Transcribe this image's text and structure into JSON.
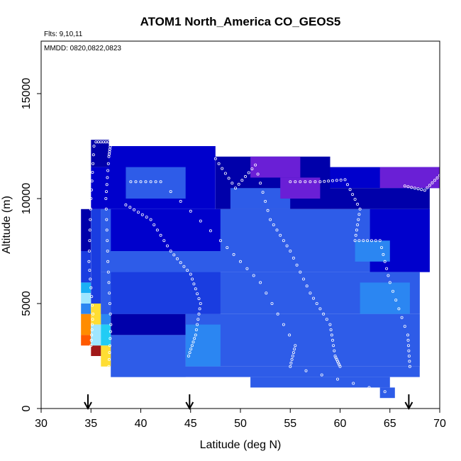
{
  "chart_data": {
    "type": "heatmap",
    "title": "ATOM1 North_America CO_GEOS5",
    "annotations": {
      "flights": "Flts: 9,10,11",
      "dates": "MMDD: 0820,0822,0823"
    },
    "xlabel": "Latitude (deg N)",
    "ylabel": "Altitude (m)",
    "xlim": [
      30,
      70
    ],
    "ylim": [
      0,
      17500
    ],
    "xticks": [
      "30",
      "35",
      "40",
      "45",
      "50",
      "55",
      "60",
      "65",
      "70"
    ],
    "yticks": [
      "0",
      "5000",
      "10000",
      "15000"
    ],
    "grid": false,
    "arrow_markers_lat": [
      34.7,
      44.9,
      66.9
    ],
    "colors": {
      "purple": "#6a1fd6",
      "navy": "#0000aa",
      "dark_blue": "#0000cc",
      "blue": "#1a3de0",
      "mid_blue": "#2e5ce8",
      "light_blue": "#2b86f2",
      "sky": "#1ab0f5",
      "cyan": "#22ccf5",
      "pale": "#9fe6ff",
      "yellow": "#ffdd33",
      "orange": "#ff8c00",
      "red_orange": "#ff5a00",
      "dark_red": "#a01818"
    },
    "regions": [
      {
        "lat": [
          34.0,
          35.0
        ],
        "alt": [
          7500,
          9500
        ],
        "color": "navy"
      },
      {
        "lat": [
          34.0,
          35.0
        ],
        "alt": [
          6000,
          7500
        ],
        "color": "blue"
      },
      {
        "lat": [
          34.0,
          35.0
        ],
        "alt": [
          5500,
          6000
        ],
        "color": "sky"
      },
      {
        "lat": [
          34.0,
          35.0
        ],
        "alt": [
          5000,
          5500
        ],
        "color": "pale"
      },
      {
        "lat": [
          34.0,
          35.0
        ],
        "alt": [
          4500,
          5000
        ],
        "color": "light_blue"
      },
      {
        "lat": [
          34.0,
          35.0
        ],
        "alt": [
          3500,
          4500
        ],
        "color": "orange"
      },
      {
        "lat": [
          34.0,
          35.0
        ],
        "alt": [
          3000,
          3500
        ],
        "color": "red_orange"
      },
      {
        "lat": [
          35.0,
          36.0
        ],
        "alt": [
          5000,
          9500
        ],
        "color": "blue"
      },
      {
        "lat": [
          35.0,
          36.0
        ],
        "alt": [
          4000,
          5000
        ],
        "color": "yellow"
      },
      {
        "lat": [
          35.0,
          36.0
        ],
        "alt": [
          3000,
          4000
        ],
        "color": "pale"
      },
      {
        "lat": [
          35.0,
          36.0
        ],
        "alt": [
          2500,
          3000
        ],
        "color": "dark_red"
      },
      {
        "lat": [
          36.0,
          37.0
        ],
        "alt": [
          4000,
          5000
        ],
        "color": "light_blue"
      },
      {
        "lat": [
          36.0,
          37.0
        ],
        "alt": [
          3000,
          4000
        ],
        "color": "cyan"
      },
      {
        "lat": [
          36.0,
          37.0
        ],
        "alt": [
          2000,
          3000
        ],
        "color": "yellow"
      },
      {
        "lat": [
          35.0,
          36.8
        ],
        "alt": [
          11500,
          12800
        ],
        "color": "navy"
      },
      {
        "lat": [
          35.0,
          36.8
        ],
        "alt": [
          9500,
          11500
        ],
        "color": "dark_blue"
      },
      {
        "lat": [
          36.8,
          47.5
        ],
        "alt": [
          9500,
          12500
        ],
        "color": "dark_blue"
      },
      {
        "lat": [
          38.5,
          44.5
        ],
        "alt": [
          10000,
          11500
        ],
        "color": "mid_blue"
      },
      {
        "lat": [
          47.5,
          59.0
        ],
        "alt": [
          9500,
          12000
        ],
        "color": "navy"
      },
      {
        "lat": [
          49.0,
          55.0
        ],
        "alt": [
          9500,
          10500
        ],
        "color": "mid_blue"
      },
      {
        "lat": [
          51.0,
          56.0
        ],
        "alt": [
          11000,
          12000
        ],
        "color": "purple"
      },
      {
        "lat": [
          54.0,
          58.0
        ],
        "alt": [
          10000,
          11000
        ],
        "color": "purple"
      },
      {
        "lat": [
          59.0,
          70.0
        ],
        "alt": [
          10500,
          11500
        ],
        "color": "dark_blue"
      },
      {
        "lat": [
          64.0,
          70.0
        ],
        "alt": [
          10500,
          11500
        ],
        "color": "purple"
      },
      {
        "lat": [
          59.0,
          69.0
        ],
        "alt": [
          9500,
          10500
        ],
        "color": "navy"
      },
      {
        "lat": [
          36.0,
          69.0
        ],
        "alt": [
          6500,
          9500
        ],
        "color": "mid_blue"
      },
      {
        "lat": [
          37.0,
          48.0
        ],
        "alt": [
          7500,
          9500
        ],
        "color": "dark_blue"
      },
      {
        "lat": [
          63.0,
          69.0
        ],
        "alt": [
          6500,
          9500
        ],
        "color": "dark_blue"
      },
      {
        "lat": [
          61.5,
          65.0
        ],
        "alt": [
          7000,
          8000
        ],
        "color": "light_blue"
      },
      {
        "lat": [
          36.0,
          68.0
        ],
        "alt": [
          4500,
          6500
        ],
        "color": "mid_blue"
      },
      {
        "lat": [
          37.0,
          48.0
        ],
        "alt": [
          4500,
          6500
        ],
        "color": "blue"
      },
      {
        "lat": [
          62.0,
          67.0
        ],
        "alt": [
          4500,
          6000
        ],
        "color": "light_blue"
      },
      {
        "lat": [
          37.0,
          44.5
        ],
        "alt": [
          3500,
          4500
        ],
        "color": "navy"
      },
      {
        "lat": [
          44.5,
          68.0
        ],
        "alt": [
          2000,
          4500
        ],
        "color": "mid_blue"
      },
      {
        "lat": [
          37.0,
          44.5
        ],
        "alt": [
          1500,
          3500
        ],
        "color": "mid_blue"
      },
      {
        "lat": [
          44.5,
          48.0
        ],
        "alt": [
          2000,
          4000
        ],
        "color": "light_blue"
      },
      {
        "lat": [
          37.0,
          68.0
        ],
        "alt": [
          1500,
          2000
        ],
        "color": "mid_blue"
      },
      {
        "lat": [
          51.0,
          65.0
        ],
        "alt": [
          1000,
          1500
        ],
        "color": "mid_blue"
      },
      {
        "lat": [
          64.0,
          65.5
        ],
        "alt": [
          500,
          1000
        ],
        "color": "mid_blue"
      }
    ],
    "flight_tracks": [
      [
        [
          35.5,
          12700
        ],
        [
          37.0,
          12700
        ],
        [
          36.8,
          12000
        ],
        [
          36.5,
          10000
        ],
        [
          36.7,
          7000
        ],
        [
          37.0,
          4000
        ],
        [
          36.8,
          2000
        ]
      ],
      [
        [
          35.3,
          12500
        ],
        [
          35.0,
          10000
        ],
        [
          34.8,
          7000
        ],
        [
          35.2,
          4500
        ],
        [
          35.0,
          3000
        ]
      ],
      [
        [
          38.5,
          9700
        ],
        [
          41.0,
          9000
        ],
        [
          43.0,
          7500
        ],
        [
          45.0,
          6400
        ],
        [
          46.0,
          5000
        ],
        [
          45.5,
          3500
        ],
        [
          44.8,
          2500
        ]
      ],
      [
        [
          47.5,
          11900
        ],
        [
          49.5,
          10500
        ],
        [
          51.5,
          11600
        ],
        [
          53.0,
          9000
        ],
        [
          55.0,
          7500
        ],
        [
          57.0,
          5500
        ],
        [
          59.0,
          4000
        ],
        [
          59.5,
          2500
        ],
        [
          60.0,
          2000
        ]
      ],
      [
        [
          55.0,
          10800
        ],
        [
          58.0,
          10800
        ],
        [
          60.5,
          10900
        ],
        [
          62.0,
          9500
        ],
        [
          61.5,
          8000
        ],
        [
          64.0,
          8000
        ],
        [
          65.0,
          6000
        ],
        [
          66.8,
          3500
        ],
        [
          67.0,
          2000
        ]
      ],
      [
        [
          66.5,
          10600
        ],
        [
          68.5,
          10400
        ],
        [
          70.0,
          11100
        ]
      ],
      [
        [
          39.0,
          10800
        ],
        [
          42.0,
          10800
        ],
        [
          48.0,
          8000
        ],
        [
          52.0,
          6000
        ],
        [
          55.5,
          3000
        ],
        [
          55.0,
          2000
        ],
        [
          64.5,
          800
        ]
      ]
    ]
  }
}
